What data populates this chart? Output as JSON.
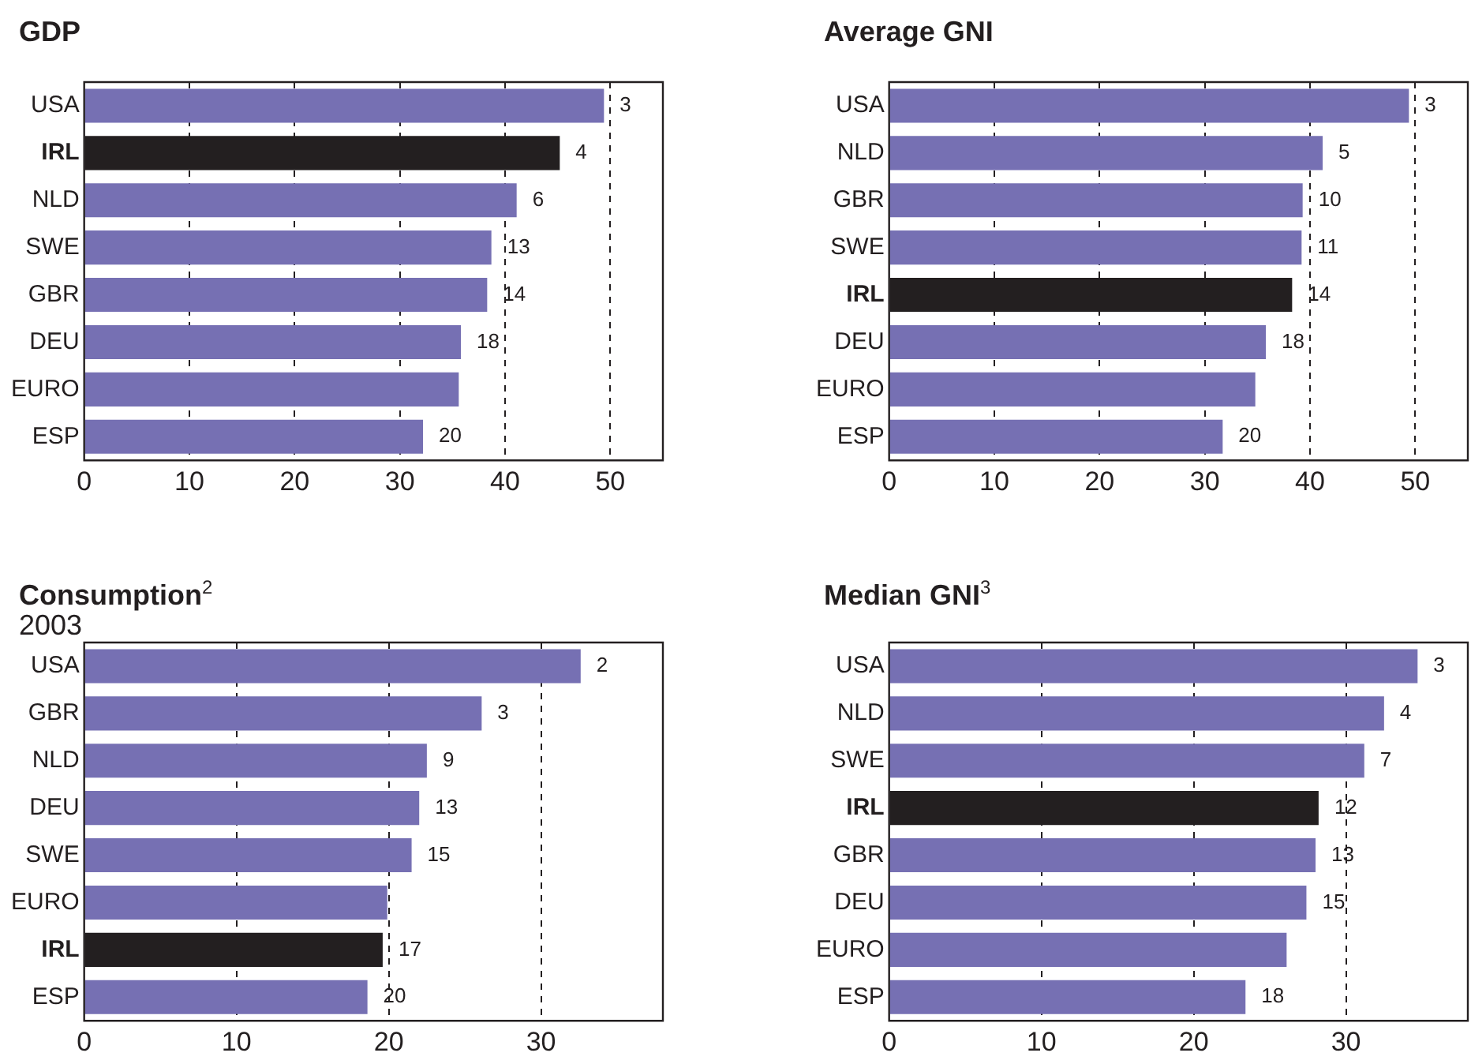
{
  "chart_data": [
    {
      "type": "bar",
      "orientation": "horizontal",
      "title": "GDP",
      "categories": [
        "USA",
        "IRL",
        "NLD",
        "SWE",
        "GBR",
        "DEU",
        "EURO",
        "ESP"
      ],
      "values": [
        49.4,
        45.2,
        41.1,
        38.7,
        38.3,
        35.8,
        35.6,
        32.2
      ],
      "colors": [
        "#7670b3",
        "#231f20",
        "#7670b3",
        "#7670b3",
        "#7670b3",
        "#7670b3",
        "#7670b3",
        "#7670b3"
      ],
      "annotations": [
        {
          "text": "3",
          "x": 49.4,
          "y": "USA"
        },
        {
          "text": "4",
          "x": 45.2,
          "y": "IRL"
        },
        {
          "text": "6",
          "x": 41.1,
          "y": "NLD"
        },
        {
          "text": "13",
          "x": 38.7,
          "y": "SWE"
        },
        {
          "text": "14",
          "x": 38.3,
          "y": "GBR"
        },
        {
          "text": "18",
          "x": 35.8,
          "y": "DEU"
        },
        {
          "text": "20",
          "x": 32.2,
          "y": "ESP"
        }
      ],
      "xlim": [
        0,
        55
      ],
      "xticks": [
        0,
        10,
        20,
        30,
        40,
        50
      ],
      "grid": "x",
      "legend": false
    },
    {
      "type": "bar",
      "orientation": "horizontal",
      "title": "Average GNI",
      "categories": [
        "USA",
        "NLD",
        "GBR",
        "SWE",
        "IRL",
        "DEU",
        "EURO",
        "ESP"
      ],
      "values": [
        49.4,
        41.2,
        39.3,
        39.2,
        38.3,
        35.8,
        34.8,
        31.7
      ],
      "colors": [
        "#7670b3",
        "#7670b3",
        "#7670b3",
        "#7670b3",
        "#231f20",
        "#7670b3",
        "#7670b3",
        "#7670b3"
      ],
      "annotations": [
        {
          "text": "3",
          "x": 49.4,
          "y": "USA"
        },
        {
          "text": "5",
          "x": 41.2,
          "y": "NLD"
        },
        {
          "text": "10",
          "x": 39.3,
          "y": "GBR"
        },
        {
          "text": "11",
          "x": 39.2,
          "y": "SWE"
        },
        {
          "text": "14",
          "x": 38.3,
          "y": "IRL"
        },
        {
          "text": "18",
          "x": 35.8,
          "y": "DEU"
        },
        {
          "text": "20",
          "x": 31.7,
          "y": "ESP"
        }
      ],
      "xlim": [
        0,
        55
      ],
      "xticks": [
        0,
        10,
        20,
        30,
        40,
        50
      ],
      "grid": "x",
      "legend": false
    },
    {
      "type": "bar",
      "orientation": "horizontal",
      "title": "Consumption$^{2}$",
      "subtitle": "2003",
      "categories": [
        "USA",
        "GBR",
        "NLD",
        "DEU",
        "SWE",
        "EURO",
        "IRL",
        "ESP"
      ],
      "values": [
        32.6,
        26.1,
        22.5,
        22.0,
        21.5,
        19.9,
        19.6,
        18.6
      ],
      "colors": [
        "#7670b3",
        "#7670b3",
        "#7670b3",
        "#7670b3",
        "#7670b3",
        "#7670b3",
        "#231f20",
        "#7670b3"
      ],
      "annotations": [
        {
          "text": "2",
          "x": 32.6,
          "y": "USA"
        },
        {
          "text": "3",
          "x": 26.1,
          "y": "GBR"
        },
        {
          "text": "9",
          "x": 22.5,
          "y": "NLD"
        },
        {
          "text": "13",
          "x": 22.0,
          "y": "DEU"
        },
        {
          "text": "15",
          "x": 21.5,
          "y": "SWE"
        },
        {
          "text": "17",
          "x": 19.6,
          "y": "IRL"
        },
        {
          "text": "20",
          "x": 18.6,
          "y": "ESP"
        }
      ],
      "xlim": [
        0,
        38
      ],
      "xticks": [
        0,
        10,
        20,
        30
      ],
      "grid": "x",
      "legend": false
    },
    {
      "type": "bar",
      "orientation": "horizontal",
      "title": "Median GNI$^{3}$",
      "categories": [
        "USA",
        "NLD",
        "SWE",
        "IRL",
        "GBR",
        "DEU",
        "EURO",
        "ESP"
      ],
      "values": [
        34.7,
        32.5,
        31.2,
        28.2,
        28.0,
        27.4,
        26.1,
        23.4
      ],
      "colors": [
        "#7670b3",
        "#7670b3",
        "#7670b3",
        "#231f20",
        "#7670b3",
        "#7670b3",
        "#7670b3",
        "#7670b3"
      ],
      "annotations": [
        {
          "text": "3",
          "x": 34.7,
          "y": "USA"
        },
        {
          "text": "4",
          "x": 32.5,
          "y": "NLD"
        },
        {
          "text": "7",
          "x": 31.2,
          "y": "SWE"
        },
        {
          "text": "12",
          "x": 28.2,
          "y": "IRL"
        },
        {
          "text": "13",
          "x": 28.0,
          "y": "GBR"
        },
        {
          "text": "15",
          "x": 27.4,
          "y": "DEU"
        },
        {
          "text": "18",
          "x": 23.4,
          "y": "ESP"
        }
      ],
      "xlim": [
        0,
        38
      ],
      "xticks": [
        0,
        10,
        20,
        30
      ],
      "grid": "x",
      "legend": false
    }
  ]
}
